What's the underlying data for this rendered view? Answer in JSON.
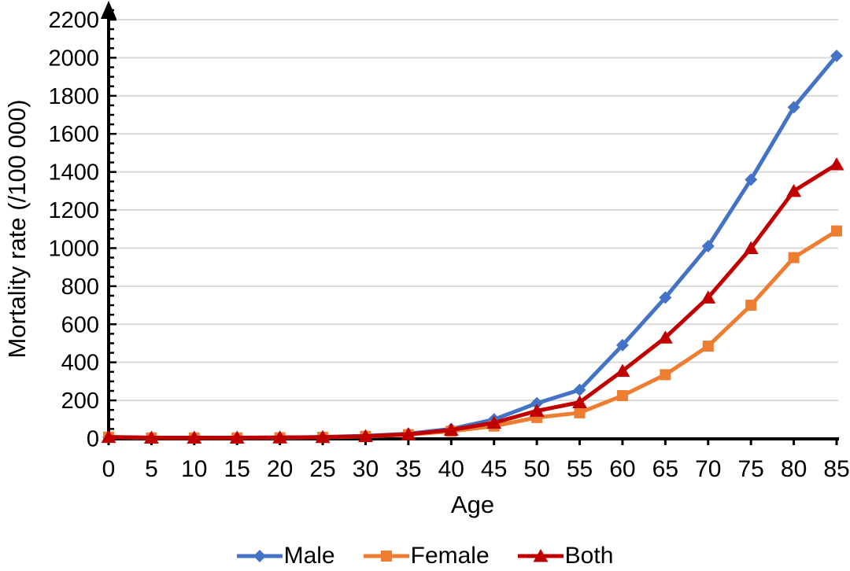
{
  "chart_data": {
    "type": "line",
    "title": "",
    "xlabel": "Age",
    "ylabel": "Mortality rate (/100 000)",
    "x": [
      0,
      5,
      10,
      15,
      20,
      25,
      30,
      35,
      40,
      45,
      50,
      55,
      60,
      65,
      70,
      75,
      80,
      85
    ],
    "xlim": [
      0,
      85
    ],
    "ylim": [
      0,
      2200
    ],
    "ytick_step": 200,
    "ytick_minor_step": 50,
    "grid": "horizontal",
    "grid_color": "#d9d9d9",
    "axis_color": "#000000",
    "legend_position": "bottom-center",
    "series": [
      {
        "name": "Male",
        "color": "#4472c4",
        "marker": "diamond",
        "values": [
          8,
          4,
          4,
          4,
          5,
          8,
          14,
          25,
          50,
          100,
          185,
          255,
          490,
          740,
          1010,
          1360,
          1740,
          2010
        ]
      },
      {
        "name": "Female",
        "color": "#ed7d31",
        "marker": "square",
        "values": [
          7,
          3,
          3,
          3,
          4,
          6,
          11,
          20,
          38,
          65,
          110,
          135,
          225,
          335,
          485,
          700,
          950,
          1090
        ]
      },
      {
        "name": "Both",
        "color": "#c00000",
        "marker": "triangle",
        "values": [
          8,
          4,
          4,
          4,
          5,
          7,
          12,
          22,
          45,
          82,
          145,
          190,
          355,
          530,
          740,
          1000,
          1300,
          1440
        ]
      }
    ]
  }
}
